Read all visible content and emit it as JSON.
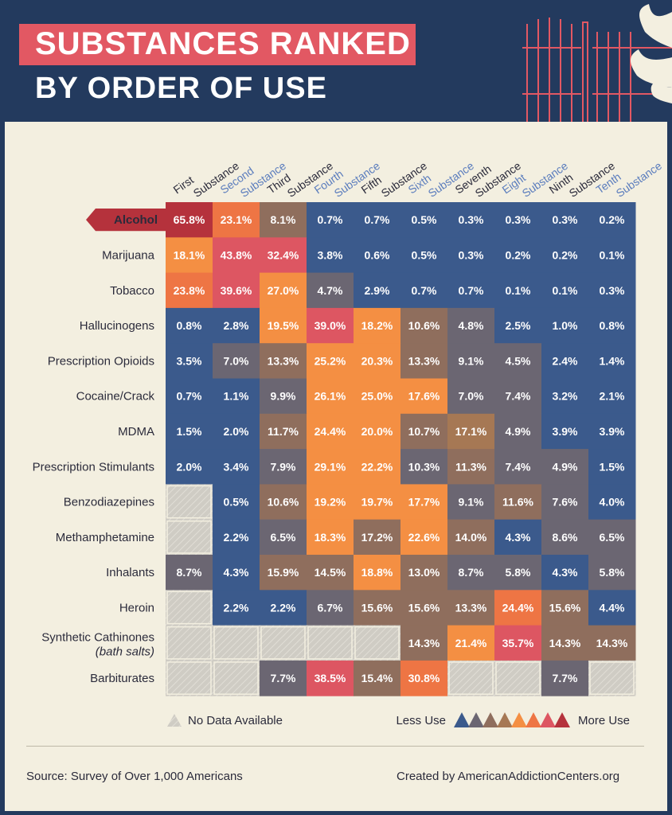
{
  "header": {
    "title_line1": "SUBSTANCES RANKED",
    "title_line2": "BY ORDER OF USE"
  },
  "chart_data": {
    "type": "heatmap",
    "title": "SUBSTANCES RANKED BY ORDER OF USE",
    "columns": [
      {
        "w1": "First",
        "w2": "Substance"
      },
      {
        "w1": "Second",
        "w2": "Substance"
      },
      {
        "w1": "Third",
        "w2": "Substance"
      },
      {
        "w1": "Fourth",
        "w2": "Substance"
      },
      {
        "w1": "Fifth",
        "w2": "Substance"
      },
      {
        "w1": "Sixth",
        "w2": "Substance"
      },
      {
        "w1": "Seventh",
        "w2": "Substance"
      },
      {
        "w1": "Eight",
        "w2": "Substance"
      },
      {
        "w1": "Ninth",
        "w2": "Substance"
      },
      {
        "w1": "Tenth",
        "w2": "Substance"
      }
    ],
    "rows": [
      {
        "label": "Alcohol",
        "highlight": true,
        "values": [
          "65.8%",
          "23.1%",
          "8.1%",
          "0.7%",
          "0.7%",
          "0.5%",
          "0.3%",
          "0.3%",
          "0.3%",
          "0.2%"
        ],
        "levels": [
          7,
          5,
          2,
          0,
          0,
          0,
          0,
          0,
          0,
          0
        ]
      },
      {
        "label": "Marijuana",
        "values": [
          "18.1%",
          "43.8%",
          "32.4%",
          "3.8%",
          "0.6%",
          "0.5%",
          "0.3%",
          "0.2%",
          "0.2%",
          "0.1%"
        ],
        "levels": [
          4,
          6,
          6,
          0,
          0,
          0,
          0,
          0,
          0,
          0
        ]
      },
      {
        "label": "Tobacco",
        "values": [
          "23.8%",
          "39.6%",
          "27.0%",
          "4.7%",
          "2.9%",
          "0.7%",
          "0.7%",
          "0.1%",
          "0.1%",
          "0.3%"
        ],
        "levels": [
          5,
          6,
          4,
          1,
          0,
          0,
          0,
          0,
          0,
          0
        ]
      },
      {
        "label": "Hallucinogens",
        "values": [
          "0.8%",
          "2.8%",
          "19.5%",
          "39.0%",
          "18.2%",
          "10.6%",
          "4.8%",
          "2.5%",
          "1.0%",
          "0.8%"
        ],
        "levels": [
          0,
          0,
          4,
          6,
          4,
          2,
          1,
          0,
          0,
          0
        ]
      },
      {
        "label": "Prescription Opioids",
        "values": [
          "3.5%",
          "7.0%",
          "13.3%",
          "25.2%",
          "20.3%",
          "13.3%",
          "9.1%",
          "4.5%",
          "2.4%",
          "1.4%"
        ],
        "levels": [
          0,
          1,
          2,
          4,
          4,
          2,
          1,
          1,
          0,
          0
        ]
      },
      {
        "label": "Cocaine/Crack",
        "values": [
          "0.7%",
          "1.1%",
          "9.9%",
          "26.1%",
          "25.0%",
          "17.6%",
          "7.0%",
          "7.4%",
          "3.2%",
          "2.1%"
        ],
        "levels": [
          0,
          0,
          1,
          4,
          4,
          4,
          1,
          1,
          0,
          0
        ]
      },
      {
        "label": "MDMA",
        "values": [
          "1.5%",
          "2.0%",
          "11.7%",
          "24.4%",
          "20.0%",
          "10.7%",
          "17.1%",
          "4.9%",
          "3.9%",
          "3.9%"
        ],
        "levels": [
          0,
          0,
          2,
          4,
          4,
          2,
          3,
          1,
          0,
          0
        ]
      },
      {
        "label": "Prescription Stimulants",
        "values": [
          "2.0%",
          "3.4%",
          "7.9%",
          "29.1%",
          "22.2%",
          "10.3%",
          "11.3%",
          "7.4%",
          "4.9%",
          "1.5%"
        ],
        "levels": [
          0,
          0,
          1,
          4,
          4,
          1,
          2,
          1,
          1,
          0
        ]
      },
      {
        "label": "Benzodiazepines",
        "values": [
          "",
          "0.5%",
          "10.6%",
          "19.2%",
          "19.7%",
          "17.7%",
          "9.1%",
          "11.6%",
          "7.6%",
          "4.0%"
        ],
        "levels": [
          -1,
          0,
          2,
          4,
          4,
          4,
          1,
          2,
          1,
          0
        ]
      },
      {
        "label": "Methamphetamine",
        "values": [
          "",
          "2.2%",
          "6.5%",
          "18.3%",
          "17.2%",
          "22.6%",
          "14.0%",
          "4.3%",
          "8.6%",
          "6.5%"
        ],
        "levels": [
          -1,
          0,
          1,
          4,
          2,
          4,
          2,
          0,
          1,
          1
        ]
      },
      {
        "label": "Inhalants",
        "values": [
          "8.7%",
          "4.3%",
          "15.9%",
          "14.5%",
          "18.8%",
          "13.0%",
          "8.7%",
          "5.8%",
          "4.3%",
          "5.8%"
        ],
        "levels": [
          1,
          0,
          2,
          2,
          4,
          2,
          1,
          1,
          0,
          1
        ]
      },
      {
        "label": "Heroin",
        "values": [
          "",
          "2.2%",
          "2.2%",
          "6.7%",
          "15.6%",
          "15.6%",
          "13.3%",
          "24.4%",
          "15.6%",
          "4.4%"
        ],
        "levels": [
          -1,
          0,
          0,
          1,
          2,
          2,
          2,
          5,
          2,
          0
        ]
      },
      {
        "label": "Synthetic Cathinones",
        "sublabel": "(bath salts)",
        "values": [
          "",
          "",
          "",
          "",
          "",
          "14.3%",
          "21.4%",
          "35.7%",
          "14.3%",
          "14.3%"
        ],
        "levels": [
          -1,
          -1,
          -1,
          -1,
          -1,
          2,
          4,
          6,
          2,
          2
        ]
      },
      {
        "label": "Barbiturates",
        "values": [
          "",
          "",
          "7.7%",
          "38.5%",
          "15.4%",
          "30.8%",
          "",
          "",
          "7.7%",
          ""
        ],
        "levels": [
          -1,
          -1,
          1,
          6,
          2,
          5,
          -1,
          -1,
          1,
          -1
        ]
      }
    ]
  },
  "palette": {
    "levels": [
      "#3b5a8c",
      "#6b6672",
      "#8f6e5d",
      "#a67854",
      "#f48f43",
      "#ee7544",
      "#dd5662",
      "#b5323c"
    ],
    "no_data": "#cfccc4",
    "header_band": "#e25863",
    "background": "#233a5e",
    "panel": "#f3efe0",
    "highlight_label": "#b5323c",
    "column_label_dark": "#2b2b3b",
    "column_label_blue": "#5b7dbd"
  },
  "legend": {
    "no_data_label": "No Data Available",
    "less_label": "Less Use",
    "more_label": "More Use"
  },
  "footer": {
    "source": "Source: Survey of Over 1,000 Americans",
    "credit": "Created by AmericanAddictionCenters.org"
  }
}
